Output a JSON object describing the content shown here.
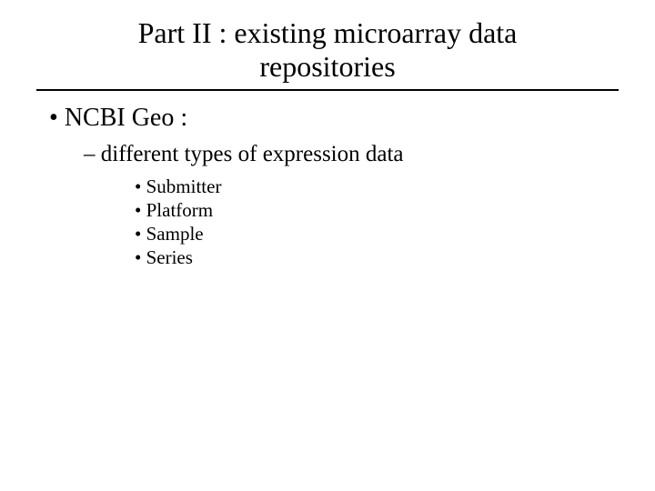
{
  "slide": {
    "title": "Part II : existing microarray data repositories",
    "level1": {
      "item0": "NCBI Geo :"
    },
    "level2": {
      "item0": "different types of expression data"
    },
    "level3": {
      "item0": "Submitter",
      "item1": "Platform",
      "item2": "Sample",
      "item3": "Series"
    },
    "colors": {
      "background": "#ffffff",
      "text": "#000000",
      "rule": "#000000"
    },
    "typography": {
      "font_family": "Times New Roman",
      "title_fontsize": 32,
      "l1_fontsize": 28,
      "l2_fontsize": 25,
      "l3_fontsize": 21
    }
  }
}
